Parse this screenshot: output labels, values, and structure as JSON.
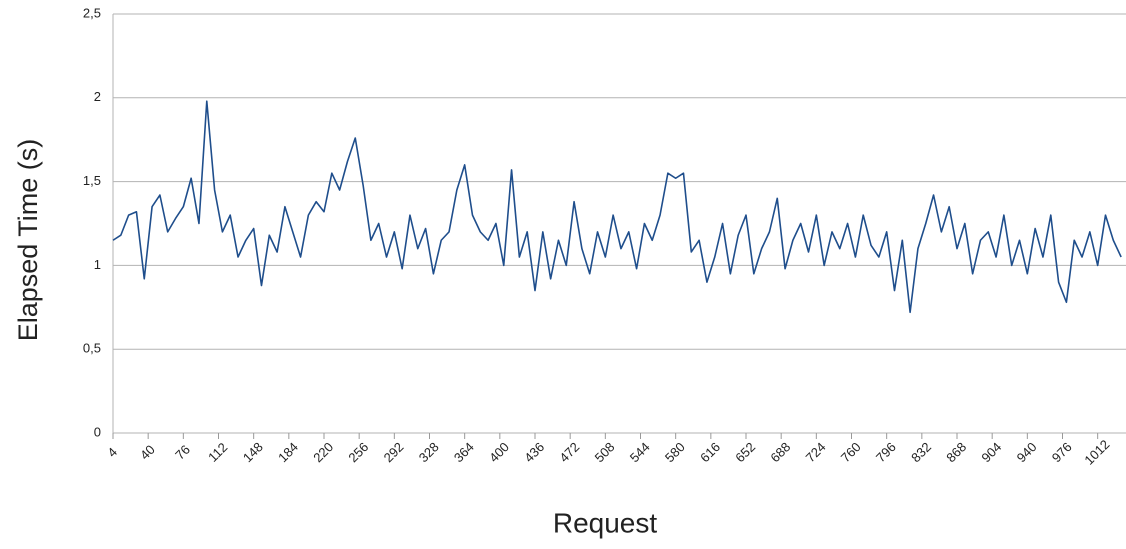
{
  "chart_data": {
    "type": "line",
    "x_label": "Request",
    "y_label": "Elapsed Time (s)",
    "xlim": [
      4,
      1041
    ],
    "xticks": [
      4,
      40,
      76,
      112,
      148,
      184,
      220,
      256,
      292,
      328,
      364,
      400,
      436,
      472,
      508,
      544,
      580,
      616,
      652,
      688,
      724,
      760,
      796,
      832,
      868,
      904,
      940,
      976,
      1012
    ],
    "ylim": [
      0,
      2.5
    ],
    "yticks": [
      0,
      {
        "value": 0.5,
        "label": "0,5"
      },
      1,
      {
        "value": 1.5,
        "label": "1,5"
      },
      2,
      {
        "value": 2.5,
        "label": "2,5"
      }
    ],
    "grid": true,
    "x": [
      4,
      12,
      20,
      28,
      36,
      44,
      52,
      60,
      68,
      76,
      84,
      92,
      100,
      108,
      116,
      124,
      132,
      140,
      148,
      156,
      164,
      172,
      180,
      188,
      196,
      204,
      212,
      220,
      228,
      236,
      244,
      252,
      260,
      268,
      276,
      284,
      292,
      300,
      308,
      316,
      324,
      332,
      340,
      348,
      356,
      364,
      372,
      380,
      388,
      396,
      404,
      412,
      420,
      428,
      436,
      444,
      452,
      460,
      468,
      476,
      484,
      492,
      500,
      508,
      516,
      524,
      532,
      540,
      548,
      556,
      564,
      572,
      580,
      588,
      596,
      604,
      612,
      620,
      628,
      636,
      644,
      652,
      660,
      668,
      676,
      684,
      692,
      700,
      708,
      716,
      724,
      732,
      740,
      748,
      756,
      764,
      772,
      780,
      788,
      796,
      804,
      812,
      820,
      828,
      836,
      844,
      852,
      860,
      868,
      876,
      884,
      892,
      900,
      908,
      916,
      924,
      932,
      940,
      948,
      956,
      964,
      972,
      980,
      988,
      996,
      1004,
      1012,
      1020,
      1028,
      1036
    ],
    "series": [
      {
        "color": "#1f4e8c",
        "values": [
          1.15,
          1.18,
          1.3,
          1.32,
          0.92,
          1.35,
          1.42,
          1.2,
          1.28,
          1.35,
          1.52,
          1.25,
          1.98,
          1.45,
          1.2,
          1.3,
          1.05,
          1.15,
          1.22,
          0.88,
          1.18,
          1.08,
          1.35,
          1.2,
          1.05,
          1.3,
          1.38,
          1.32,
          1.55,
          1.45,
          1.62,
          1.76,
          1.48,
          1.15,
          1.25,
          1.05,
          1.2,
          0.98,
          1.3,
          1.1,
          1.22,
          0.95,
          1.15,
          1.2,
          1.45,
          1.6,
          1.3,
          1.2,
          1.15,
          1.25,
          1.0,
          1.57,
          1.05,
          1.2,
          0.85,
          1.2,
          0.92,
          1.15,
          1.0,
          1.38,
          1.1,
          0.95,
          1.2,
          1.05,
          1.3,
          1.1,
          1.2,
          0.98,
          1.25,
          1.15,
          1.3,
          1.55,
          1.52,
          1.55,
          1.08,
          1.15,
          0.9,
          1.05,
          1.25,
          0.95,
          1.18,
          1.3,
          0.95,
          1.1,
          1.2,
          1.4,
          0.98,
          1.15,
          1.25,
          1.08,
          1.3,
          1.0,
          1.2,
          1.1,
          1.25,
          1.05,
          1.3,
          1.12,
          1.05,
          1.2,
          0.85,
          1.15,
          0.72,
          1.1,
          1.25,
          1.42,
          1.2,
          1.35,
          1.1,
          1.25,
          0.95,
          1.15,
          1.2,
          1.05,
          1.3,
          1.0,
          1.15,
          0.95,
          1.22,
          1.05,
          1.3,
          0.9,
          0.78,
          1.15,
          1.05,
          1.2,
          1.0,
          1.3,
          1.15,
          1.05
        ]
      }
    ]
  }
}
